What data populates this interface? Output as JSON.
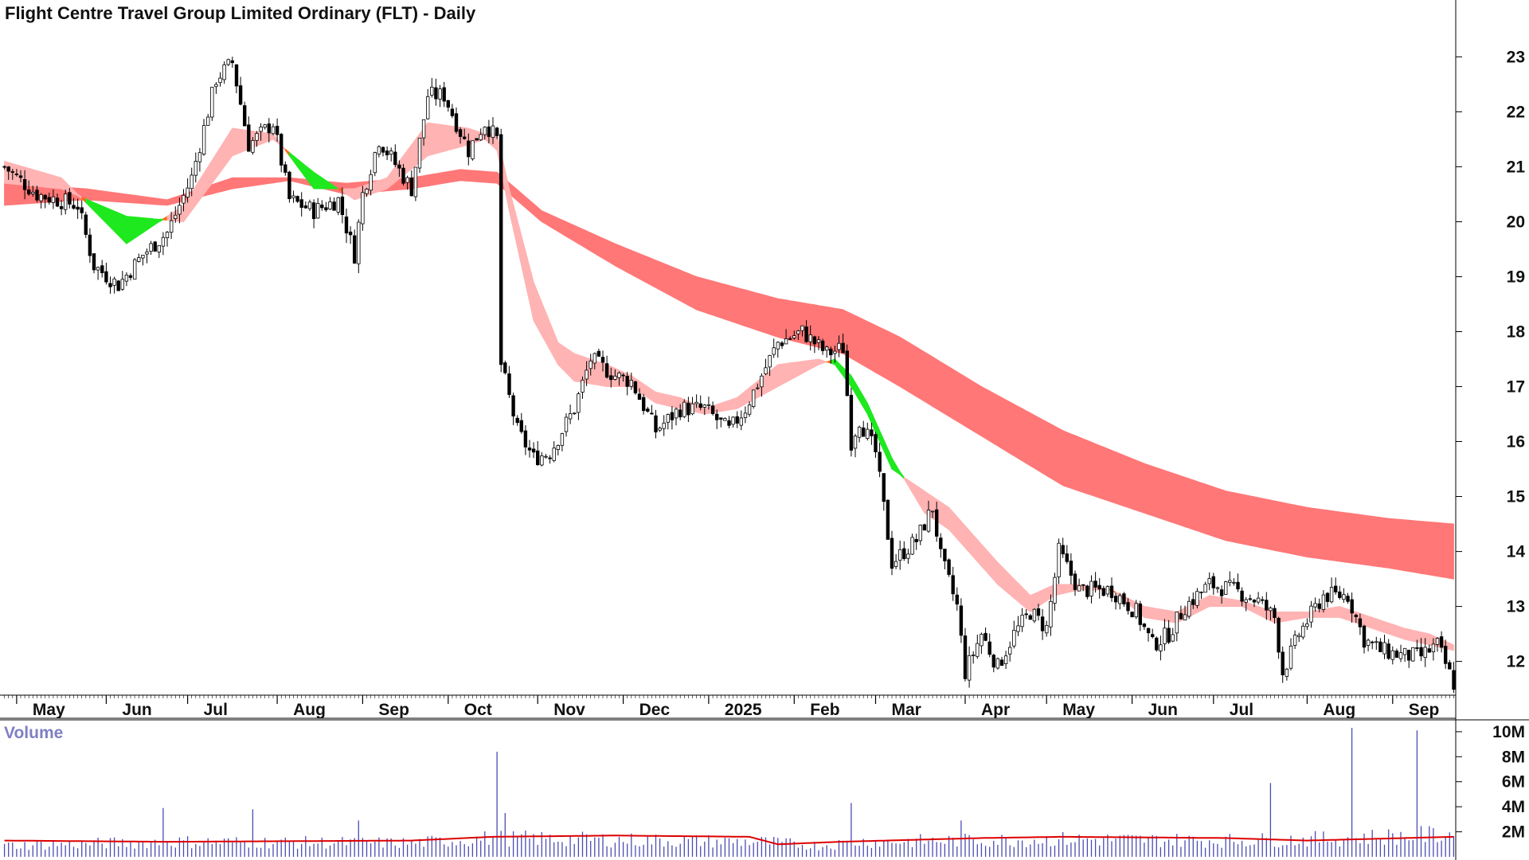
{
  "chart_data": {
    "type": "candlestick",
    "title": "Flight Centre Travel Group Limited Ordinary (FLT) - Daily",
    "volume_label": "Volume",
    "price_axis": {
      "ticks": [
        12,
        13,
        14,
        15,
        16,
        17,
        18,
        19,
        20,
        21,
        22,
        23
      ],
      "range": [
        11.4,
        23.6
      ],
      "position": "right"
    },
    "volume_axis": {
      "ticks": [
        "2M",
        "4M",
        "6M",
        "8M",
        "10M"
      ],
      "tick_values": [
        2,
        4,
        6,
        8,
        10
      ],
      "range": [
        0,
        11.2
      ],
      "unit": "M"
    },
    "x_axis": {
      "labels": [
        "May",
        "Jun",
        "Jul",
        "Aug",
        "Sep",
        "Oct",
        "Nov",
        "Dec",
        "2025",
        "Feb",
        "Mar",
        "Apr",
        "May",
        "Jun",
        "Jul",
        "Aug",
        "Sep"
      ],
      "label_index": [
        3,
        25,
        45,
        67,
        88,
        109,
        131,
        152,
        173,
        194,
        214,
        236,
        256,
        277,
        297,
        320,
        341
      ],
      "count": 357
    },
    "close_series": [
      [
        0,
        21.0
      ],
      [
        8,
        20.5
      ],
      [
        18,
        20.3
      ],
      [
        22,
        19.2
      ],
      [
        28,
        18.85
      ],
      [
        34,
        19.4
      ],
      [
        40,
        19.8
      ],
      [
        46,
        20.8
      ],
      [
        52,
        22.6
      ],
      [
        56,
        22.9
      ],
      [
        60,
        21.4
      ],
      [
        66,
        21.8
      ],
      [
        70,
        20.4
      ],
      [
        76,
        20.2
      ],
      [
        82,
        20.4
      ],
      [
        86,
        19.4
      ],
      [
        88,
        20.5
      ],
      [
        92,
        21.5
      ],
      [
        100,
        20.6
      ],
      [
        104,
        22.3
      ],
      [
        108,
        22.3
      ],
      [
        114,
        21.3
      ],
      [
        118,
        21.8
      ],
      [
        121,
        21.5
      ],
      [
        122,
        17.4
      ],
      [
        126,
        16.2
      ],
      [
        130,
        15.7
      ],
      [
        134,
        15.8
      ],
      [
        140,
        16.6
      ],
      [
        144,
        17.5
      ],
      [
        150,
        17.2
      ],
      [
        154,
        17.1
      ],
      [
        160,
        16.2
      ],
      [
        166,
        16.6
      ],
      [
        172,
        16.6
      ],
      [
        178,
        16.2
      ],
      [
        182,
        16.6
      ],
      [
        190,
        17.8
      ],
      [
        196,
        18.0
      ],
      [
        202,
        17.6
      ],
      [
        206,
        17.7
      ],
      [
        208,
        16.0
      ],
      [
        210,
        16.4
      ],
      [
        214,
        15.8
      ],
      [
        218,
        13.8
      ],
      [
        224,
        14.2
      ],
      [
        228,
        14.8
      ],
      [
        230,
        13.9
      ],
      [
        234,
        13.0
      ],
      [
        236,
        11.8
      ],
      [
        240,
        12.5
      ],
      [
        244,
        11.9
      ],
      [
        248,
        12.5
      ],
      [
        252,
        12.9
      ],
      [
        256,
        12.6
      ],
      [
        259,
        14.0
      ],
      [
        264,
        13.3
      ],
      [
        272,
        13.3
      ],
      [
        278,
        12.9
      ],
      [
        282,
        12.3
      ],
      [
        286,
        12.5
      ],
      [
        290,
        13.0
      ],
      [
        296,
        13.4
      ],
      [
        302,
        13.3
      ],
      [
        308,
        13.1
      ],
      [
        312,
        12.8
      ],
      [
        314,
        11.8
      ],
      [
        318,
        12.5
      ],
      [
        324,
        13.2
      ],
      [
        330,
        13.2
      ],
      [
        334,
        12.4
      ],
      [
        338,
        12.2
      ],
      [
        344,
        12.1
      ],
      [
        348,
        12.1
      ],
      [
        352,
        12.3
      ],
      [
        356,
        11.6
      ]
    ],
    "fast_ribbon": [
      [
        0,
        20.7,
        21.1
      ],
      [
        14,
        20.6,
        20.8
      ],
      [
        30,
        20.1,
        19.6
      ],
      [
        44,
        20.0,
        20.3
      ],
      [
        56,
        21.2,
        21.7
      ],
      [
        66,
        21.5,
        21.6
      ],
      [
        76,
        20.9,
        20.6
      ],
      [
        86,
        20.4,
        20.6
      ],
      [
        94,
        20.6,
        20.8
      ],
      [
        104,
        21.2,
        21.8
      ],
      [
        114,
        21.4,
        21.7
      ],
      [
        118,
        21.5,
        21.6
      ],
      [
        121,
        21.3,
        21.6
      ],
      [
        124,
        20.2,
        20.6
      ],
      [
        130,
        18.2,
        18.9
      ],
      [
        136,
        17.4,
        17.8
      ],
      [
        140,
        17.1,
        17.6
      ],
      [
        148,
        17.0,
        17.4
      ],
      [
        154,
        17.0,
        17.2
      ],
      [
        160,
        16.7,
        16.9
      ],
      [
        166,
        16.6,
        16.8
      ],
      [
        172,
        16.5,
        16.6
      ],
      [
        180,
        16.6,
        16.8
      ],
      [
        190,
        17.0,
        17.4
      ],
      [
        200,
        17.4,
        17.5
      ],
      [
        204,
        17.5,
        17.4
      ],
      [
        208,
        17.2,
        17.0
      ],
      [
        212,
        16.7,
        16.5
      ],
      [
        218,
        15.7,
        15.5
      ],
      [
        226,
        14.7,
        15.1
      ],
      [
        232,
        14.4,
        14.8
      ],
      [
        238,
        13.9,
        14.3
      ],
      [
        244,
        13.4,
        13.8
      ],
      [
        252,
        12.9,
        13.2
      ],
      [
        258,
        13.2,
        13.4
      ],
      [
        264,
        13.3,
        13.4
      ],
      [
        272,
        13.3,
        13.3
      ],
      [
        280,
        12.8,
        13.0
      ],
      [
        288,
        12.7,
        12.9
      ],
      [
        296,
        13.0,
        13.2
      ],
      [
        304,
        13.0,
        13.1
      ],
      [
        312,
        12.7,
        12.9
      ],
      [
        320,
        12.8,
        12.9
      ],
      [
        328,
        12.8,
        13.0
      ],
      [
        336,
        12.6,
        12.8
      ],
      [
        344,
        12.4,
        12.6
      ],
      [
        350,
        12.3,
        12.5
      ],
      [
        356,
        12.2,
        12.3
      ]
    ],
    "slow_ribbon": [
      [
        0,
        20.3,
        20.7
      ],
      [
        20,
        20.4,
        20.6
      ],
      [
        40,
        20.3,
        20.4
      ],
      [
        56,
        20.6,
        20.8
      ],
      [
        70,
        20.75,
        20.8
      ],
      [
        84,
        20.5,
        20.7
      ],
      [
        100,
        20.6,
        20.8
      ],
      [
        112,
        20.75,
        20.95
      ],
      [
        121,
        20.7,
        20.9
      ],
      [
        132,
        20.0,
        20.2
      ],
      [
        150,
        19.2,
        19.6
      ],
      [
        170,
        18.4,
        19.0
      ],
      [
        190,
        17.9,
        18.6
      ],
      [
        206,
        17.6,
        18.4
      ],
      [
        220,
        17.0,
        17.9
      ],
      [
        240,
        16.1,
        17.0
      ],
      [
        260,
        15.2,
        16.2
      ],
      [
        280,
        14.7,
        15.6
      ],
      [
        300,
        14.2,
        15.1
      ],
      [
        320,
        13.9,
        14.8
      ],
      [
        340,
        13.7,
        14.6
      ],
      [
        356,
        13.5,
        14.5
      ]
    ],
    "volume_profile": [
      [
        0,
        0.9
      ],
      [
        40,
        1.2
      ],
      [
        100,
        1.1
      ],
      [
        120,
        1.5
      ],
      [
        160,
        1.3
      ],
      [
        186,
        1.2
      ],
      [
        200,
        0.9
      ],
      [
        210,
        1.2
      ],
      [
        260,
        1.4
      ],
      [
        300,
        1.3
      ],
      [
        320,
        1.4
      ],
      [
        356,
        1.8
      ]
    ],
    "volume_average": [
      [
        0,
        1.3
      ],
      [
        40,
        1.2
      ],
      [
        100,
        1.3
      ],
      [
        120,
        1.6
      ],
      [
        150,
        1.7
      ],
      [
        183,
        1.6
      ],
      [
        190,
        1.0
      ],
      [
        205,
        1.2
      ],
      [
        240,
        1.5
      ],
      [
        260,
        1.6
      ],
      [
        300,
        1.5
      ],
      [
        320,
        1.3
      ],
      [
        356,
        1.6
      ]
    ],
    "volume_spikes": [
      [
        39,
        3.9
      ],
      [
        61,
        3.8
      ],
      [
        87,
        2.9
      ],
      [
        121,
        8.4
      ],
      [
        123,
        3.5
      ],
      [
        208,
        4.3
      ],
      [
        235,
        2.9
      ],
      [
        311,
        5.9
      ],
      [
        331,
        10.3
      ],
      [
        347,
        10.1
      ]
    ],
    "colors": {
      "candle": "#000000",
      "ribbon_up_fast": "#1ee81e",
      "ribbon_up_slow": "#3cb371",
      "ribbon_down_fast": "#ffb3b3",
      "ribbon_down_slow": "#ff7777",
      "ribbon_mixed": "#ff6a13",
      "volume_bar": "#4b4bb4",
      "volume_average": "#dd0000",
      "axis": "#000000"
    },
    "legend": "none",
    "grid": false
  }
}
